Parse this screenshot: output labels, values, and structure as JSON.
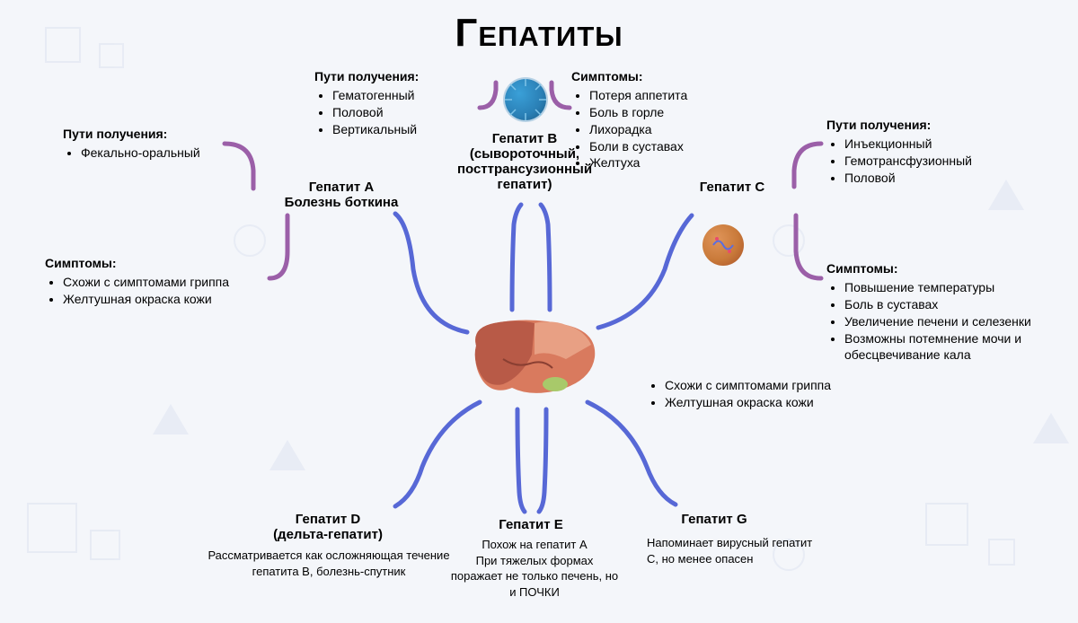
{
  "title": "Гепатиты",
  "colors": {
    "purple": "#9b5fa8",
    "blue": "#5768d6",
    "bg": "#f4f6fa",
    "shape": "#dce2ef",
    "text": "#111111",
    "liver1": "#d97a5e",
    "liver2": "#b85a47",
    "liver3": "#e8a084",
    "virusB1": "#2a7fb5",
    "virusB2": "#3aa0d8",
    "virusC1": "#c97a3a",
    "virusC2": "#a85028"
  },
  "hepA": {
    "label": "Гепатит A\nБолезнь боткина",
    "routes_hdr": "Пути получения:",
    "routes": [
      "Фекально-оральный"
    ],
    "symptoms_hdr": "Симптомы:",
    "symptoms": [
      "Схожи с симптомами гриппа",
      "Желтушная окраска кожи"
    ]
  },
  "hepB": {
    "label": "Гепатит B\n(сывороточный,\nпосттрансузионный\nгепатит)",
    "routes_hdr": "Пути получения:",
    "routes": [
      "Гематогенный",
      "Половой",
      "Вертикальный"
    ],
    "symptoms_hdr": "Симптомы:",
    "symptoms": [
      "Потеря аппетита",
      "Боль в горле",
      "Лихорадка",
      "Боли в суставах",
      "Желтуха"
    ]
  },
  "hepC": {
    "label": "Гепатит C",
    "routes_hdr": "Пути получения:",
    "routes": [
      "Инъекционный",
      "Гемотрансфузионный",
      "Половой"
    ],
    "symptoms_hdr": "Симптомы:",
    "symptoms": [
      "Повышение температуры",
      "Боль в суставах",
      "Увеличение печени и селезенки",
      "Возможны потемнение мочи и обесцвечивание кала"
    ],
    "extra": [
      "Схожи с симптомами гриппа",
      "Желтушная окраска кожи"
    ]
  },
  "hepD": {
    "label": "Гепатит D\n(дельта-гепатит)",
    "desc": "Рассматривается как осложняющая течение гепатита B, болезнь-спутник"
  },
  "hepE": {
    "label": "Гепатит E",
    "desc": "Похож на гепатит A\nПри тяжелых формах поражает не только печень, но и ПОЧКИ"
  },
  "hepG": {
    "label": "Гепатит G",
    "desc": "Напоминает вирусный гепатит C, но менее опасен"
  }
}
